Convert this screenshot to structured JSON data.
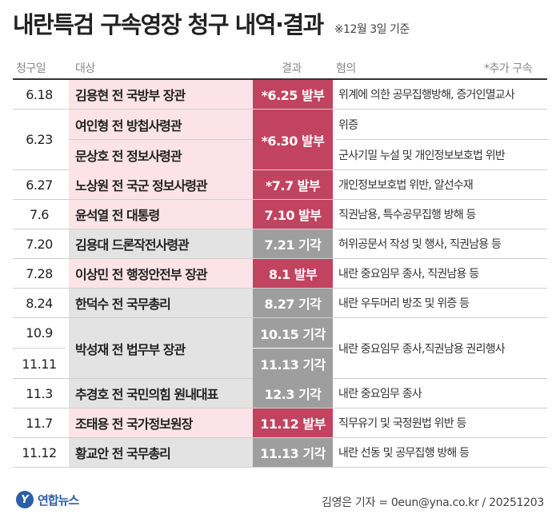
{
  "title": "내란특검 구속영장 청구 내역·결과",
  "subtitle": "※12월 3일 기준",
  "columns": {
    "date": "청구일",
    "target": "대상",
    "result": "결과",
    "charge": "혐의",
    "note": "*추가 구속"
  },
  "rows": [
    {
      "date": "6.18",
      "target": "김용현 전 국방부 장관",
      "result": "*6.25 발부",
      "charge": "위계에 의한 공무집행방해, 증거인멸교사"
    },
    {
      "date": "6.23",
      "target_a": "여인형 전 방첩사령관",
      "target_b": "문상호 전 정보사령관",
      "result": "*6.30 발부",
      "charge_a": "위증",
      "charge_b": "군사기밀 누설 및 개인정보보호법 위반"
    },
    {
      "date": "6.27",
      "target": "노상원 전 국군 정보사령관",
      "result": "*7.7 발부",
      "charge": "개인정보보호법 위반, 알선수재"
    },
    {
      "date": "7.6",
      "target": "윤석열 전 대통령",
      "result": "7.10 발부",
      "charge": "직권남용, 특수공무집행 방해 등"
    },
    {
      "date": "7.20",
      "target": "김용대 드론작전사령관",
      "result": "7.21 기각",
      "charge": "허위공문서 작성 및 행사, 직권남용 등"
    },
    {
      "date": "7.28",
      "target": "이상민 전 행정안전부 장관",
      "result": "8.1 발부",
      "charge": "내란 중요임무 종사, 직권남용 등"
    },
    {
      "date": "8.24",
      "target": "한덕수 전 국무총리",
      "result": "8.27 기각",
      "charge": "내란 우두머리 방조 및 위증 등"
    },
    {
      "date_a": "10.9",
      "date_b": "11.11",
      "target": "박성재 전 법무부 장관",
      "result_a": "10.15 기각",
      "result_b": "11.13 기각",
      "charge": "내란 중요임무 종사,직권남용 권리행사"
    },
    {
      "date": "11.3",
      "target": "추경호 전 국민의힘 원내대표",
      "result": "12.3 기각",
      "charge": "내란 중요임무 종사"
    },
    {
      "date": "11.7",
      "target": "조태용 전 국가정보원장",
      "result": "11.12 발부",
      "charge": "직무유기 및 국정원법 위반 등"
    },
    {
      "date": "11.12",
      "target": "황교안 전 국무총리",
      "result": "11.13 기각",
      "charge": "내란 선동 및 공무집행 방해 등"
    }
  ],
  "footer": {
    "logo_mark": "Y",
    "logo_text": "연합뉴스",
    "credit": "김영은 기자 = 0eun@yna.co.kr / 20251203"
  },
  "colors": {
    "granted": "#c2435f",
    "rejected": "#9e9e9e",
    "granted_row": "#fbe3e7",
    "rejected_row": "#e3e3e3"
  }
}
